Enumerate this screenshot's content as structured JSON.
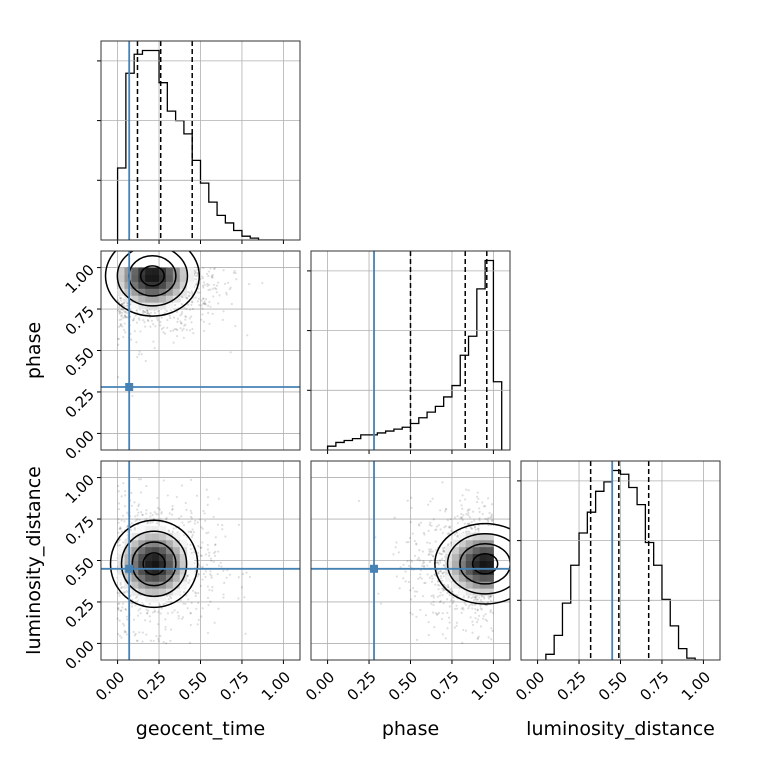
{
  "chart_data": {
    "type": "corner",
    "parameters": [
      "geocent_time",
      "phase",
      "luminosity_distance"
    ],
    "axis_labels": {
      "geocent_time": "geocent_time",
      "phase": "phase",
      "luminosity_distance": "luminosity_distance"
    },
    "axis_range": [
      -0.1,
      1.1
    ],
    "ticks": [
      0.0,
      0.25,
      0.5,
      0.75,
      1.0
    ],
    "tick_labels": [
      "0.00",
      "0.25",
      "0.50",
      "0.75",
      "1.00"
    ],
    "grid": true,
    "truths": {
      "geocent_time": 0.07,
      "phase": 0.28,
      "luminosity_distance": 0.45
    },
    "truth_color": "#4682b4",
    "histograms": {
      "geocent_time": {
        "bin_edges": [
          0.0,
          0.05,
          0.1,
          0.15,
          0.2,
          0.25,
          0.3,
          0.35,
          0.4,
          0.45,
          0.5,
          0.55,
          0.6,
          0.65,
          0.7,
          0.75,
          0.8,
          0.85,
          0.9,
          0.95,
          1.0
        ],
        "counts": [
          0.38,
          0.88,
          0.98,
          1.0,
          1.0,
          0.83,
          0.68,
          0.63,
          0.56,
          0.42,
          0.3,
          0.2,
          0.13,
          0.09,
          0.05,
          0.02,
          0.01,
          0,
          0,
          0
        ],
        "quantiles": [
          0.12,
          0.26,
          0.45
        ]
      },
      "phase": {
        "bin_edges": [
          0.0,
          0.05,
          0.1,
          0.15,
          0.2,
          0.25,
          0.3,
          0.35,
          0.4,
          0.45,
          0.5,
          0.55,
          0.6,
          0.65,
          0.7,
          0.75,
          0.8,
          0.85,
          0.9,
          0.95,
          1.0,
          1.05
        ],
        "counts": [
          0.02,
          0.04,
          0.05,
          0.06,
          0.08,
          0.08,
          0.09,
          0.1,
          0.11,
          0.12,
          0.14,
          0.17,
          0.2,
          0.23,
          0.28,
          0.34,
          0.5,
          0.6,
          0.85,
          1.0,
          0.36
        ],
        "quantiles": [
          0.5,
          0.83,
          0.96
        ]
      },
      "luminosity_distance": {
        "bin_edges": [
          0.05,
          0.1,
          0.15,
          0.2,
          0.25,
          0.3,
          0.35,
          0.4,
          0.45,
          0.5,
          0.55,
          0.6,
          0.65,
          0.7,
          0.75,
          0.8,
          0.85,
          0.9,
          0.95,
          1.0
        ],
        "counts": [
          0.03,
          0.13,
          0.3,
          0.5,
          0.67,
          0.78,
          0.89,
          0.94,
          1.0,
          0.98,
          0.91,
          0.82,
          0.62,
          0.5,
          0.32,
          0.18,
          0.06,
          0.01,
          0
        ],
        "quantiles": [
          0.32,
          0.49,
          0.67
        ]
      }
    },
    "joint_density": {
      "phase_vs_geocent_time": {
        "center": [
          0.21,
          0.95
        ],
        "spread": [
          0.14,
          0.12
        ]
      },
      "luminosity_distance_vs_geocent_time": {
        "center": [
          0.22,
          0.48
        ],
        "spread": [
          0.13,
          0.13
        ]
      },
      "luminosity_distance_vs_phase": {
        "center": [
          0.95,
          0.48
        ],
        "spread": [
          0.15,
          0.12
        ]
      }
    },
    "contour_levels": [
      "0.5-sigma",
      "1-sigma",
      "1.5-sigma",
      "2-sigma"
    ]
  }
}
